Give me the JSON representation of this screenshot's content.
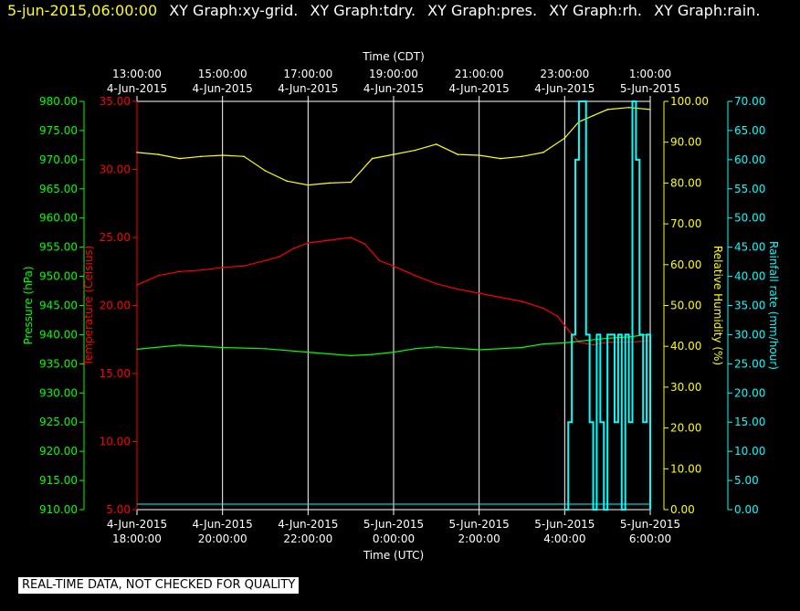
{
  "header": {
    "date": "5-jun-2015,06:00:00",
    "items": [
      "XY Graph:xy-grid.",
      "XY Graph:tdry.",
      "XY Graph:pres.",
      "XY Graph:rh.",
      "XY Graph:rain."
    ]
  },
  "footer_note": "REAL-TIME DATA, NOT CHECKED FOR QUALITY",
  "colors": {
    "pressure": "#00ff00",
    "temperature": "#ff0000",
    "humidity": "#ffff00",
    "rain": "#00ffff",
    "grid": "#ffffff",
    "background": "#000000"
  },
  "chart_data": {
    "type": "line",
    "grid": true,
    "x_top": {
      "label": "Time (CDT)",
      "ticks": [
        {
          "time": "13:00:00",
          "date": "4-Jun-2015"
        },
        {
          "time": "15:00:00",
          "date": "4-Jun-2015"
        },
        {
          "time": "17:00:00",
          "date": "4-Jun-2015"
        },
        {
          "time": "19:00:00",
          "date": "4-Jun-2015"
        },
        {
          "time": "21:00:00",
          "date": "4-Jun-2015"
        },
        {
          "time": "23:00:00",
          "date": "4-Jun-2015"
        },
        {
          "time": "1:00:00",
          "date": "5-Jun-2015"
        }
      ]
    },
    "x_bottom": {
      "label": "Time (UTC)",
      "range": [
        "2015-06-04 18:00",
        "2015-06-05 06:00"
      ],
      "ticks": [
        {
          "date": "4-Jun-2015",
          "time": "18:00:00"
        },
        {
          "date": "4-Jun-2015",
          "time": "20:00:00"
        },
        {
          "date": "4-Jun-2015",
          "time": "22:00:00"
        },
        {
          "date": "5-Jun-2015",
          "time": "0:00:00"
        },
        {
          "date": "5-Jun-2015",
          "time": "2:00:00"
        },
        {
          "date": "5-Jun-2015",
          "time": "4:00:00"
        },
        {
          "date": "5-Jun-2015",
          "time": "6:00:00"
        }
      ]
    },
    "axes": {
      "pressure": {
        "label": "Pressure (hPa)",
        "range": [
          910,
          980
        ],
        "ticks": [
          "910.00",
          "915.00",
          "920.00",
          "925.00",
          "930.00",
          "935.00",
          "940.00",
          "945.00",
          "950.00",
          "955.00",
          "960.00",
          "965.00",
          "970.00",
          "975.00",
          "980.00"
        ]
      },
      "temperature": {
        "label": "Temperature (Celsius)",
        "range": [
          5,
          35
        ],
        "ticks": [
          "5.00",
          "10.00",
          "15.00",
          "20.00",
          "25.00",
          "30.00",
          "35.00"
        ]
      },
      "humidity": {
        "label": "Relative Humidity (%)",
        "range": [
          0,
          100
        ],
        "ticks": [
          "0.00",
          "10.00",
          "20.00",
          "30.00",
          "40.00",
          "50.00",
          "60.00",
          "70.00",
          "80.00",
          "90.00",
          "100.00"
        ]
      },
      "rain": {
        "label": "Rainfall rate (mm/hour)",
        "range": [
          0,
          70
        ],
        "ticks": [
          "0.00",
          "5.00",
          "10.00",
          "15.00",
          "20.00",
          "25.00",
          "30.00",
          "35.00",
          "40.00",
          "45.00",
          "50.00",
          "55.00",
          "60.00",
          "65.00",
          "70.00"
        ]
      }
    },
    "series": [
      {
        "name": "tdry",
        "axis": "temperature",
        "x": [
          "2015-06-04 18:00",
          "2015-06-04 18:30",
          "2015-06-04 19:00",
          "2015-06-04 19:30",
          "2015-06-04 20:00",
          "2015-06-04 20:30",
          "2015-06-04 21:00",
          "2015-06-04 21:20",
          "2015-06-04 21:40",
          "2015-06-04 22:00",
          "2015-06-04 22:30",
          "2015-06-04 23:00",
          "2015-06-04 23:20",
          "2015-06-04 23:40",
          "2015-06-05 00:00",
          "2015-06-05 00:30",
          "2015-06-05 01:00",
          "2015-06-05 01:30",
          "2015-06-05 02:00",
          "2015-06-05 02:30",
          "2015-06-05 03:00",
          "2015-06-05 03:30",
          "2015-06-05 03:50",
          "2015-06-05 04:05",
          "2015-06-05 04:20",
          "2015-06-05 04:40",
          "2015-06-05 05:00",
          "2015-06-05 05:30",
          "2015-06-05 06:00"
        ],
        "y": [
          21.5,
          22.2,
          22.5,
          22.6,
          22.8,
          22.9,
          23.3,
          23.6,
          24.2,
          24.6,
          24.8,
          25.0,
          24.5,
          23.3,
          22.9,
          22.2,
          21.6,
          21.2,
          20.9,
          20.6,
          20.3,
          19.8,
          19.2,
          18.2,
          17.3,
          17.1,
          17.3,
          17.3,
          17.4
        ]
      },
      {
        "name": "pres",
        "axis": "pressure",
        "x": [
          "2015-06-04 18:00",
          "2015-06-04 19:00",
          "2015-06-04 20:00",
          "2015-06-04 21:00",
          "2015-06-04 22:00",
          "2015-06-04 23:00",
          "2015-06-04 23:30",
          "2015-06-05 00:00",
          "2015-06-05 00:30",
          "2015-06-05 01:00",
          "2015-06-05 02:00",
          "2015-06-05 03:00",
          "2015-06-05 03:30",
          "2015-06-05 04:00",
          "2015-06-05 04:30",
          "2015-06-05 05:00",
          "2015-06-05 05:30",
          "2015-06-05 06:00"
        ],
        "y": [
          937.5,
          938.2,
          937.8,
          937.6,
          937.0,
          936.4,
          936.6,
          937.0,
          937.6,
          937.9,
          937.4,
          937.8,
          938.4,
          938.6,
          939.0,
          939.4,
          939.6,
          940.1
        ]
      },
      {
        "name": "rh",
        "axis": "humidity",
        "x": [
          "2015-06-04 18:00",
          "2015-06-04 18:30",
          "2015-06-04 19:00",
          "2015-06-04 19:30",
          "2015-06-04 20:00",
          "2015-06-04 20:30",
          "2015-06-04 21:00",
          "2015-06-04 21:30",
          "2015-06-04 22:00",
          "2015-06-04 22:30",
          "2015-06-04 23:00",
          "2015-06-04 23:30",
          "2015-06-05 00:00",
          "2015-06-05 00:30",
          "2015-06-05 01:00",
          "2015-06-05 01:30",
          "2015-06-05 02:00",
          "2015-06-05 02:30",
          "2015-06-05 03:00",
          "2015-06-05 03:30",
          "2015-06-05 04:00",
          "2015-06-05 04:20",
          "2015-06-05 04:40",
          "2015-06-05 05:00",
          "2015-06-05 05:30",
          "2015-06-05 06:00"
        ],
        "y": [
          87.5,
          87.0,
          86.0,
          86.5,
          86.8,
          86.5,
          83.0,
          80.5,
          79.5,
          80.0,
          80.2,
          86.0,
          87.0,
          88.0,
          89.5,
          87.0,
          86.8,
          86.0,
          86.5,
          87.5,
          91.0,
          95.0,
          96.5,
          98.0,
          98.5,
          98.0
        ]
      },
      {
        "name": "rain",
        "axis": "rain",
        "x": [
          "2015-06-05 04:00",
          "2015-06-05 04:05",
          "2015-06-05 04:10",
          "2015-06-05 04:15",
          "2015-06-05 04:20",
          "2015-06-05 04:25",
          "2015-06-05 04:30",
          "2015-06-05 04:35",
          "2015-06-05 04:40",
          "2015-06-05 04:45",
          "2015-06-05 04:50",
          "2015-06-05 04:55",
          "2015-06-05 05:00",
          "2015-06-05 05:05",
          "2015-06-05 05:10",
          "2015-06-05 05:15",
          "2015-06-05 05:20",
          "2015-06-05 05:25",
          "2015-06-05 05:30",
          "2015-06-05 05:35",
          "2015-06-05 05:40",
          "2015-06-05 05:45",
          "2015-06-05 05:50",
          "2015-06-05 05:55",
          "2015-06-05 06:00"
        ],
        "y": [
          0,
          15,
          30,
          60,
          70,
          70,
          30,
          15,
          0,
          30,
          15,
          0,
          30,
          30,
          15,
          30,
          0,
          30,
          15,
          70,
          60,
          30,
          15,
          30,
          0
        ]
      }
    ]
  }
}
